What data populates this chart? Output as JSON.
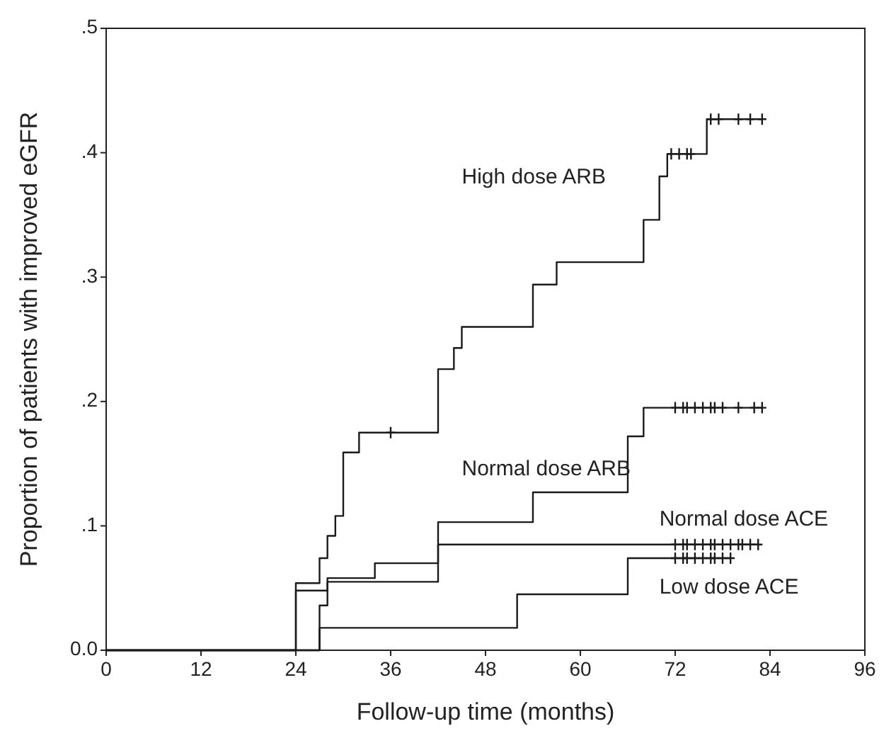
{
  "chart_data": {
    "type": "step",
    "xlabel": "Follow-up time (months)",
    "ylabel": "Proportion of patients with improved eGFR",
    "xlim": [
      0,
      96
    ],
    "xticks": [
      0,
      12,
      24,
      36,
      48,
      60,
      72,
      84,
      96
    ],
    "ylim": [
      0,
      0.5
    ],
    "yticks": [
      {
        "value": 0,
        "label": "0.0"
      },
      {
        "value": 0.1,
        "label": ".1"
      },
      {
        "value": 0.2,
        "label": ".2"
      },
      {
        "value": 0.3,
        "label": ".3"
      },
      {
        "value": 0.4,
        "label": ".4"
      },
      {
        "value": 0.5,
        "label": ".5"
      }
    ],
    "grid": false,
    "line_style": "solid",
    "series": [
      {
        "name": "High dose ARB",
        "color": "#1a1a1a",
        "x": [
          0,
          24,
          27,
          28,
          29,
          30,
          32,
          42,
          44,
          45,
          54,
          57,
          68,
          70,
          71,
          76,
          83
        ],
        "values": [
          0,
          0.054,
          0.074,
          0.092,
          0.108,
          0.159,
          0.175,
          0.226,
          0.243,
          0.26,
          0.294,
          0.312,
          0.346,
          0.381,
          0.399,
          0.427,
          0.427
        ]
      },
      {
        "type": "scatter",
        "marker": "cross",
        "color": "#1a1a1a",
        "x": [
          36,
          71.5,
          72.5,
          73.5,
          74,
          76.5,
          77.5,
          80,
          81.5,
          83
        ],
        "values": [
          0.175,
          0.399,
          0.399,
          0.399,
          0.399,
          0.427,
          0.427,
          0.427,
          0.427,
          0.427
        ]
      },
      {
        "name": "Normal dose ARB",
        "color": "#1a1a1a",
        "x": [
          0,
          24,
          28,
          34,
          42,
          54,
          66,
          68,
          83
        ],
        "values": [
          0,
          0.048,
          0.058,
          0.07,
          0.103,
          0.127,
          0.172,
          0.195,
          0.195
        ]
      },
      {
        "type": "scatter",
        "marker": "cross",
        "color": "#1a1a1a",
        "x": [
          72,
          73,
          73.5,
          74.5,
          75.5,
          76.5,
          77,
          78,
          80,
          82,
          83
        ],
        "values": [
          0.195,
          0.195,
          0.195,
          0.195,
          0.195,
          0.195,
          0.195,
          0.195,
          0.195,
          0.195,
          0.195
        ]
      },
      {
        "name": "Normal dose ACE",
        "color": "#1a1a1a",
        "x": [
          0,
          27,
          28,
          42,
          82.5
        ],
        "values": [
          0,
          0.036,
          0.055,
          0.085,
          0.085
        ]
      },
      {
        "type": "scatter",
        "marker": "cross",
        "color": "#1a1a1a",
        "x": [
          72,
          73,
          73.5,
          74.5,
          75.5,
          76.5,
          77,
          78,
          79,
          80,
          80.5,
          81.5,
          82.5
        ],
        "values": [
          0.085,
          0.085,
          0.085,
          0.085,
          0.085,
          0.085,
          0.085,
          0.085,
          0.085,
          0.085,
          0.085,
          0.085,
          0.085
        ]
      },
      {
        "name": "Low dose ACE",
        "color": "#1a1a1a",
        "x": [
          0,
          27,
          52,
          66,
          79
        ],
        "values": [
          0,
          0.018,
          0.045,
          0.074,
          0.074
        ]
      },
      {
        "type": "scatter",
        "marker": "cross",
        "color": "#1a1a1a",
        "x": [
          72,
          73,
          73.5,
          74.5,
          75.5,
          76.5,
          77,
          78,
          79
        ],
        "values": [
          0.074,
          0.074,
          0.074,
          0.074,
          0.074,
          0.074,
          0.074,
          0.074,
          0.074
        ]
      }
    ]
  }
}
